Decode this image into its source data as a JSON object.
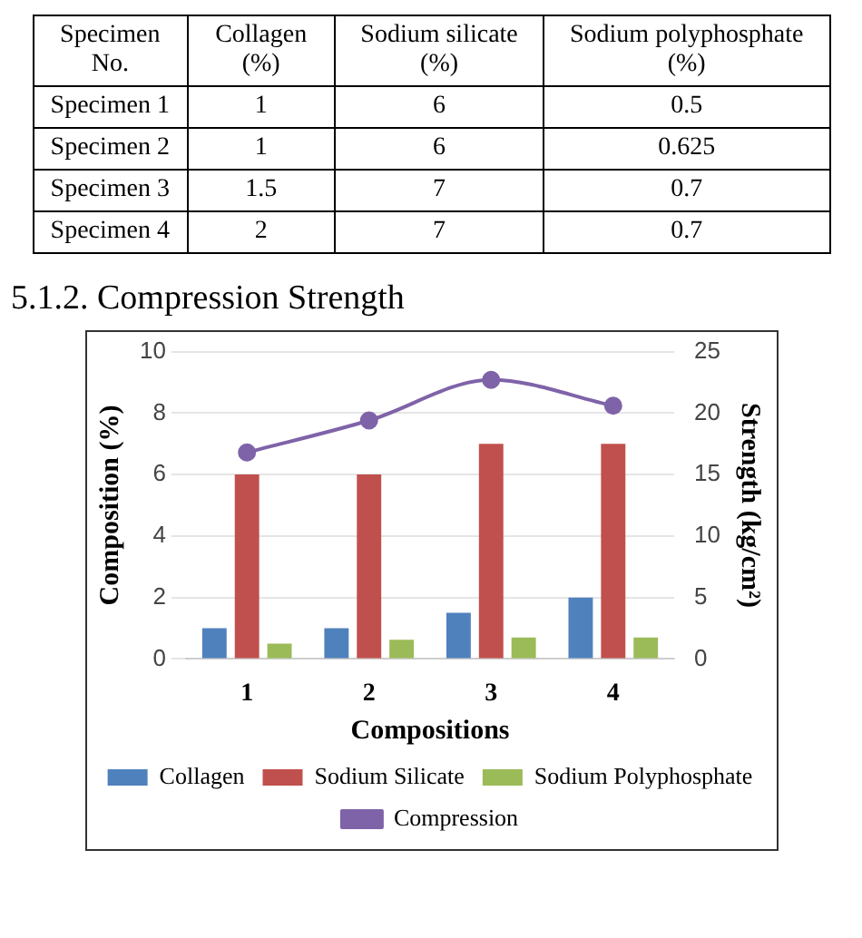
{
  "chart_data": {
    "type": "bar",
    "title": "5.1.2. Compression Strength",
    "xlabel": "Compositions",
    "ylabel": "Composition (%)",
    "y2label": "Strength (kg/cm²)",
    "annotations": [
      "Specimen No.",
      "Collagen (%)",
      "Sodium silicate (%)",
      "Sodium polyphosphate (%)",
      "Specimen 1",
      "1",
      "6",
      "0.5",
      "Specimen 2",
      "1",
      "6",
      "0.625",
      "Specimen 3",
      "1.5",
      "7",
      "0.7",
      "Specimen 4",
      "2",
      "7",
      "0.7"
    ],
    "categories": [
      "1",
      "2",
      "3",
      "4"
    ],
    "series": [
      {
        "name": "Collagen",
        "color": "#4f81bd",
        "values": [
          1,
          1,
          1.5,
          2
        ]
      },
      {
        "name": "Sodium Silicate",
        "color": "#c0504d",
        "values": [
          6,
          6,
          7,
          7
        ]
      },
      {
        "name": "Sodium Polyphosphate",
        "color": "#9bbb59",
        "values": [
          0.5,
          0.625,
          0.7,
          0.7
        ]
      },
      {
        "name": "Compression",
        "type": "line",
        "axis": "y2",
        "color": "#7f63a8",
        "values": [
          16.8,
          19.4,
          22.7,
          20.6
        ]
      }
    ],
    "ylim": [
      0,
      10
    ],
    "yticks": [
      0,
      2,
      4,
      6,
      8,
      10
    ],
    "y2lim": [
      0,
      25
    ],
    "y2ticks": [
      0,
      5,
      10,
      15,
      20,
      25
    ],
    "grid": "y",
    "legend": "bottom",
    "marker": "circle"
  }
}
